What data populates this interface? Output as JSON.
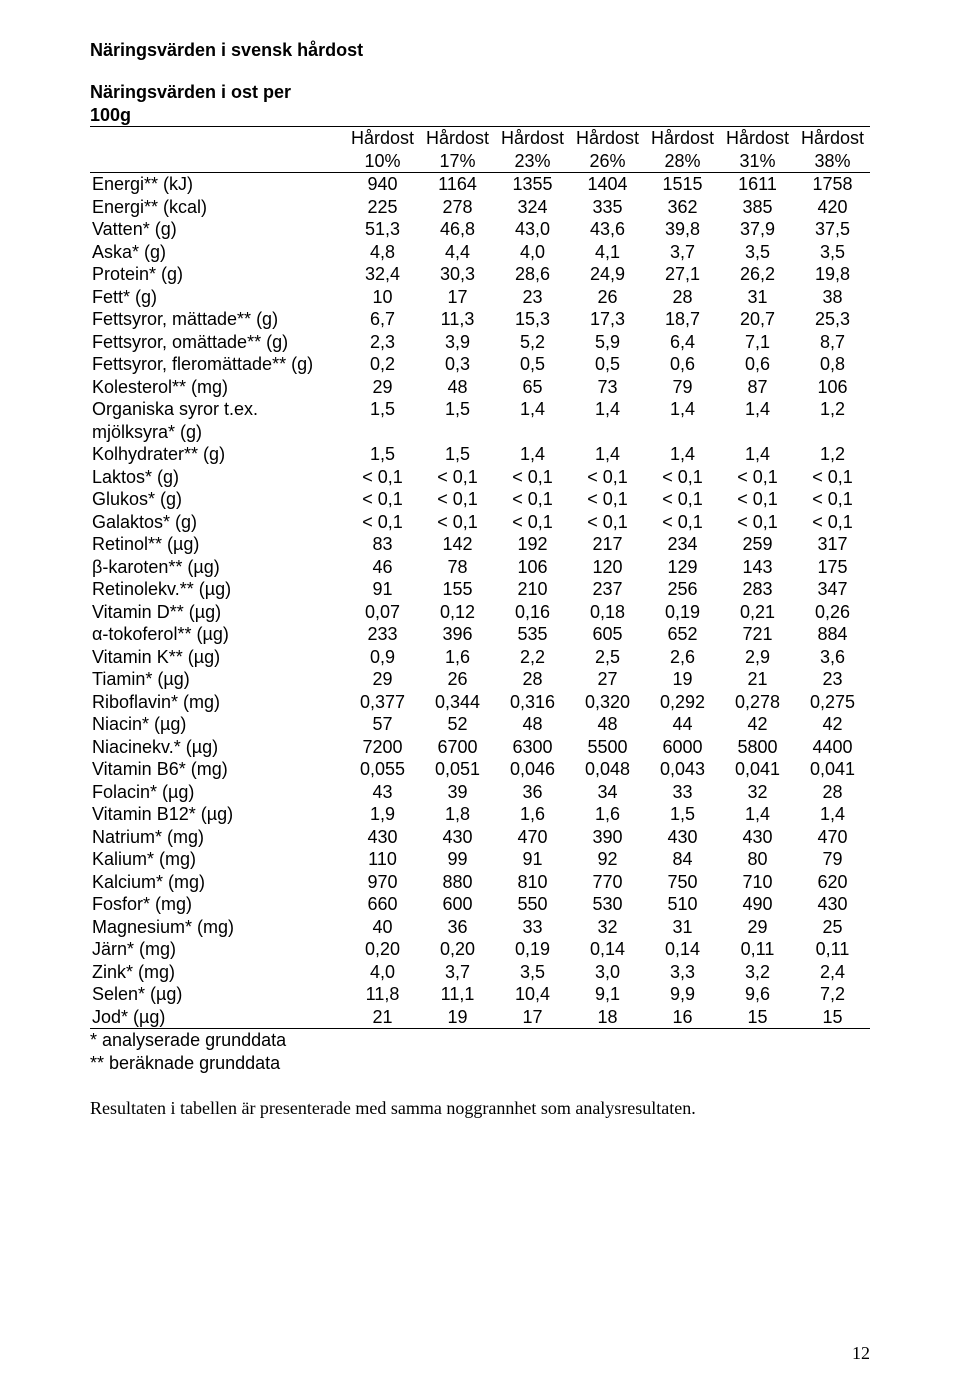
{
  "page": {
    "main_title": "Näringsvärden i svensk hårdost",
    "sub_title_line1": "Näringsvärden i ost per",
    "sub_title_line2": "100g",
    "header_word": "Hårdost",
    "header_percents": [
      "10%",
      "17%",
      "23%",
      "26%",
      "28%",
      "31%",
      "38%"
    ],
    "footnote1": "* analyserade grunddata",
    "footnote2": "** beräknade grunddata",
    "result_text": "Resultaten i tabellen är presenterade med samma noggrannhet som analysresultaten.",
    "page_number": "12"
  },
  "table": {
    "columns_count": 7,
    "label_col_width": 255,
    "data_col_width": 75,
    "font_size": 18,
    "text_color": "#000000",
    "background_color": "#ffffff",
    "border_color": "#000000",
    "rows": [
      {
        "label": "Energi** (kJ)",
        "v": [
          "940",
          "1164",
          "1355",
          "1404",
          "1515",
          "1611",
          "1758"
        ]
      },
      {
        "label": "Energi** (kcal)",
        "v": [
          "225",
          "278",
          "324",
          "335",
          "362",
          "385",
          "420"
        ]
      },
      {
        "label": "Vatten* (g)",
        "v": [
          "51,3",
          "46,8",
          "43,0",
          "43,6",
          "39,8",
          "37,9",
          "37,5"
        ]
      },
      {
        "label": "Aska* (g)",
        "v": [
          "4,8",
          "4,4",
          "4,0",
          "4,1",
          "3,7",
          "3,5",
          "3,5"
        ]
      },
      {
        "label": "Protein* (g)",
        "v": [
          "32,4",
          "30,3",
          "28,6",
          "24,9",
          "27,1",
          "26,2",
          "19,8"
        ]
      },
      {
        "label": "Fett* (g)",
        "v": [
          "10",
          "17",
          "23",
          "26",
          "28",
          "31",
          "38"
        ]
      },
      {
        "label": "Fettsyror, mättade** (g)",
        "v": [
          "6,7",
          "11,3",
          "15,3",
          "17,3",
          "18,7",
          "20,7",
          "25,3"
        ]
      },
      {
        "label": "Fettsyror, omättade** (g)",
        "v": [
          "2,3",
          "3,9",
          "5,2",
          "5,9",
          "6,4",
          "7,1",
          "8,7"
        ]
      },
      {
        "label": "Fettsyror, fleromättade** (g)",
        "v": [
          "0,2",
          "0,3",
          "0,5",
          "0,5",
          "0,6",
          "0,6",
          "0,8"
        ]
      },
      {
        "label": "Kolesterol** (mg)",
        "v": [
          "29",
          "48",
          "65",
          "73",
          "79",
          "87",
          "106"
        ]
      },
      {
        "label": "Organiska syror t.ex.",
        "v": [
          "1,5",
          "1,5",
          "1,4",
          "1,4",
          "1,4",
          "1,4",
          "1,2"
        ]
      },
      {
        "label": "mjölksyra* (g)",
        "v": [
          "",
          "",
          "",
          "",
          "",
          "",
          ""
        ]
      },
      {
        "label": "Kolhydrater** (g)",
        "v": [
          "1,5",
          "1,5",
          "1,4",
          "1,4",
          "1,4",
          "1,4",
          "1,2"
        ]
      },
      {
        "label": "Laktos* (g)",
        "v": [
          "< 0,1",
          "< 0,1",
          "< 0,1",
          "< 0,1",
          "< 0,1",
          "< 0,1",
          "< 0,1"
        ]
      },
      {
        "label": "Glukos* (g)",
        "v": [
          "< 0,1",
          "< 0,1",
          "< 0,1",
          "< 0,1",
          "< 0,1",
          "< 0,1",
          "< 0,1"
        ]
      },
      {
        "label": "Galaktos* (g)",
        "v": [
          "< 0,1",
          "< 0,1",
          "< 0,1",
          "< 0,1",
          "< 0,1",
          "< 0,1",
          "< 0,1"
        ]
      },
      {
        "label": "Retinol** (µg)",
        "v": [
          "83",
          "142",
          "192",
          "217",
          "234",
          "259",
          "317"
        ]
      },
      {
        "label": "β-karoten** (µg)",
        "v": [
          "46",
          "78",
          "106",
          "120",
          "129",
          "143",
          "175"
        ]
      },
      {
        "label": "Retinolekv.** (µg)",
        "v": [
          "91",
          "155",
          "210",
          "237",
          "256",
          "283",
          "347"
        ]
      },
      {
        "label": "Vitamin D** (µg)",
        "v": [
          "0,07",
          "0,12",
          "0,16",
          "0,18",
          "0,19",
          "0,21",
          "0,26"
        ]
      },
      {
        "label": "α-tokoferol** (µg)",
        "v": [
          "233",
          "396",
          "535",
          "605",
          "652",
          "721",
          "884"
        ]
      },
      {
        "label": "Vitamin K** (µg)",
        "v": [
          "0,9",
          "1,6",
          "2,2",
          "2,5",
          "2,6",
          "2,9",
          "3,6"
        ]
      },
      {
        "label": "Tiamin* (µg)",
        "v": [
          "29",
          "26",
          "28",
          "27",
          "19",
          "21",
          "23"
        ]
      },
      {
        "label": "Riboflavin* (mg)",
        "v": [
          "0,377",
          "0,344",
          "0,316",
          "0,320",
          "0,292",
          "0,278",
          "0,275"
        ]
      },
      {
        "label": "Niacin* (µg)",
        "v": [
          "57",
          "52",
          "48",
          "48",
          "44",
          "42",
          "42"
        ]
      },
      {
        "label": "Niacinekv.* (µg)",
        "v": [
          "7200",
          "6700",
          "6300",
          "5500",
          "6000",
          "5800",
          "4400"
        ]
      },
      {
        "label": "Vitamin B6* (mg)",
        "v": [
          "0,055",
          "0,051",
          "0,046",
          "0,048",
          "0,043",
          "0,041",
          "0,041"
        ]
      },
      {
        "label": "Folacin* (µg)",
        "v": [
          "43",
          "39",
          "36",
          "34",
          "33",
          "32",
          "28"
        ]
      },
      {
        "label": "Vitamin B12* (µg)",
        "v": [
          "1,9",
          "1,8",
          "1,6",
          "1,6",
          "1,5",
          "1,4",
          "1,4"
        ]
      },
      {
        "label": "Natrium*  (mg)",
        "v": [
          "430",
          "430",
          "470",
          "390",
          "430",
          "430",
          "470"
        ]
      },
      {
        "label": "Kalium* (mg)",
        "v": [
          "110",
          "99",
          "91",
          "92",
          "84",
          "80",
          "79"
        ]
      },
      {
        "label": "Kalcium* (mg)",
        "v": [
          "970",
          "880",
          "810",
          "770",
          "750",
          "710",
          "620"
        ]
      },
      {
        "label": "Fosfor* (mg)",
        "v": [
          "660",
          "600",
          "550",
          "530",
          "510",
          "490",
          "430"
        ]
      },
      {
        "label": "Magnesium* (mg)",
        "v": [
          "40",
          "36",
          "33",
          "32",
          "31",
          "29",
          "25"
        ]
      },
      {
        "label": "Järn* (mg)",
        "v": [
          "0,20",
          "0,20",
          "0,19",
          "0,14",
          "0,14",
          "0,11",
          "0,11"
        ]
      },
      {
        "label": "Zink* (mg)",
        "v": [
          "4,0",
          "3,7",
          "3,5",
          "3,0",
          "3,3",
          "3,2",
          "2,4"
        ]
      },
      {
        "label": "Selen* (µg)",
        "v": [
          "11,8",
          "11,1",
          "10,4",
          "9,1",
          "9,9",
          "9,6",
          "7,2"
        ]
      },
      {
        "label": "Jod* (µg)",
        "v": [
          "21",
          "19",
          "17",
          "18",
          "16",
          "15",
          "15"
        ]
      }
    ]
  }
}
